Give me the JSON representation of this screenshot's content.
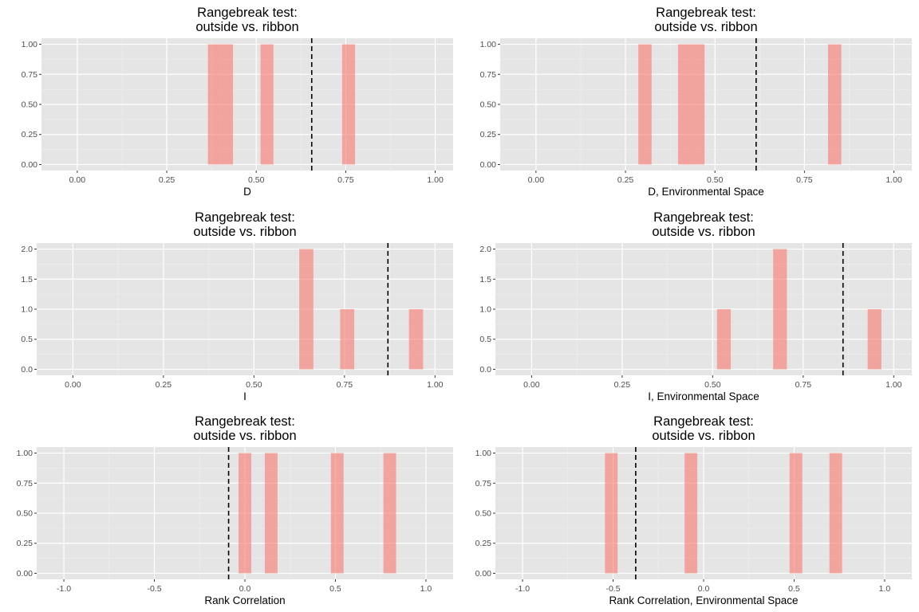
{
  "colors": {
    "panel_background": "#e5e5e5",
    "grid_major": "#ffffff",
    "grid_minor": "#f0f0f0",
    "bar_fill": "#f8766d",
    "bar_opacity": 0.6,
    "reference_line": "#000000",
    "tick_mark": "#333333"
  },
  "chart_data": [
    {
      "type": "bar",
      "title": [
        "Rangebreak test:",
        "outside vs. ribbon"
      ],
      "xlabel": "D",
      "ylabel": "",
      "xlim": [
        -0.1,
        1.05
      ],
      "ylim": [
        0,
        1
      ],
      "xticks": [
        0,
        0.25,
        0.5,
        0.75,
        1
      ],
      "xtick_labels": [
        "0.00",
        "0.25",
        "0.50",
        "0.75",
        "1.00"
      ],
      "yticks": [
        0,
        0.25,
        0.5,
        0.75,
        1
      ],
      "ytick_labels": [
        "0.00",
        "0.25",
        "0.50",
        "0.75",
        "1.00"
      ],
      "bars": [
        {
          "x0": 0.365,
          "x1": 0.4,
          "count": 1
        },
        {
          "x0": 0.4,
          "x1": 0.435,
          "count": 1
        },
        {
          "x0": 0.512,
          "x1": 0.548,
          "count": 1
        },
        {
          "x0": 0.74,
          "x1": 0.776,
          "count": 1
        }
      ],
      "reference_line_x": 0.655,
      "grid": true
    },
    {
      "type": "bar",
      "title": [
        "Rangebreak test:",
        "outside vs. ribbon"
      ],
      "xlabel": "D, Environmental Space",
      "ylabel": "",
      "xlim": [
        -0.1,
        1.05
      ],
      "ylim": [
        0,
        1
      ],
      "xticks": [
        0,
        0.25,
        0.5,
        0.75,
        1
      ],
      "xtick_labels": [
        "0.00",
        "0.25",
        "0.50",
        "0.75",
        "1.00"
      ],
      "yticks": [
        0,
        0.25,
        0.5,
        0.75,
        1
      ],
      "ytick_labels": [
        "0.00",
        "0.25",
        "0.50",
        "0.75",
        "1.00"
      ],
      "bars": [
        {
          "x0": 0.286,
          "x1": 0.323,
          "count": 1
        },
        {
          "x0": 0.397,
          "x1": 0.434,
          "count": 1
        },
        {
          "x0": 0.434,
          "x1": 0.471,
          "count": 1
        },
        {
          "x0": 0.816,
          "x1": 0.853,
          "count": 1
        }
      ],
      "reference_line_x": 0.615,
      "grid": true
    },
    {
      "type": "bar",
      "title": [
        "Rangebreak test:",
        "outside vs. ribbon"
      ],
      "xlabel": "I",
      "ylabel": "",
      "xlim": [
        -0.1,
        1.05
      ],
      "ylim": [
        0,
        2
      ],
      "xticks": [
        0,
        0.25,
        0.5,
        0.75,
        1
      ],
      "xtick_labels": [
        "0.00",
        "0.25",
        "0.50",
        "0.75",
        "1.00"
      ],
      "yticks": [
        0,
        0.5,
        1,
        1.5,
        2
      ],
      "ytick_labels": [
        "0.0",
        "0.5",
        "1.0",
        "1.5",
        "2.0"
      ],
      "bars": [
        {
          "x0": 0.625,
          "x1": 0.664,
          "count": 2
        },
        {
          "x0": 0.738,
          "x1": 0.777,
          "count": 1
        },
        {
          "x0": 0.928,
          "x1": 0.967,
          "count": 1
        }
      ],
      "reference_line_x": 0.87,
      "grid": true
    },
    {
      "type": "bar",
      "title": [
        "Rangebreak test:",
        "outside vs. ribbon"
      ],
      "xlabel": "I, Environmental Space",
      "ylabel": "",
      "xlim": [
        -0.1,
        1.05
      ],
      "ylim": [
        0,
        2
      ],
      "xticks": [
        0,
        0.25,
        0.5,
        0.75,
        1
      ],
      "xtick_labels": [
        "0.00",
        "0.25",
        "0.50",
        "0.75",
        "1.00"
      ],
      "yticks": [
        0,
        0.5,
        1,
        1.5,
        2
      ],
      "ytick_labels": [
        "0.0",
        "0.5",
        "1.0",
        "1.5",
        "2.0"
      ],
      "bars": [
        {
          "x0": 0.512,
          "x1": 0.55,
          "count": 1
        },
        {
          "x0": 0.667,
          "x1": 0.705,
          "count": 2
        },
        {
          "x0": 0.928,
          "x1": 0.966,
          "count": 1
        }
      ],
      "reference_line_x": 0.86,
      "grid": true
    },
    {
      "type": "bar",
      "title": [
        "Rangebreak test:",
        "outside vs. ribbon"
      ],
      "xlabel": "Rank Correlation",
      "ylabel": "",
      "xlim": [
        -1.15,
        1.15
      ],
      "ylim": [
        0,
        1
      ],
      "xticks": [
        -1,
        -0.5,
        0,
        0.5,
        1
      ],
      "xtick_labels": [
        "-1.0",
        "-0.5",
        "0.0",
        "0.5",
        "1.0"
      ],
      "yticks": [
        0,
        0.25,
        0.5,
        0.75,
        1
      ],
      "ytick_labels": [
        "0.00",
        "0.25",
        "0.50",
        "0.75",
        "1.00"
      ],
      "bars": [
        {
          "x0": -0.035,
          "x1": 0.035,
          "count": 1
        },
        {
          "x0": 0.11,
          "x1": 0.18,
          "count": 1
        },
        {
          "x0": 0.475,
          "x1": 0.545,
          "count": 1
        },
        {
          "x0": 0.765,
          "x1": 0.835,
          "count": 1
        }
      ],
      "reference_line_x": -0.09,
      "grid": true
    },
    {
      "type": "bar",
      "title": [
        "Rangebreak test:",
        "outside vs. ribbon"
      ],
      "xlabel": "Rank Correlation, Environmental Space",
      "ylabel": "",
      "xlim": [
        -1.15,
        1.15
      ],
      "ylim": [
        0,
        1
      ],
      "xticks": [
        -1,
        -0.5,
        0,
        0.5,
        1
      ],
      "xtick_labels": [
        "-1.0",
        "-0.5",
        "0.0",
        "0.5",
        "1.0"
      ],
      "yticks": [
        0,
        0.25,
        0.5,
        0.75,
        1
      ],
      "ytick_labels": [
        "0.00",
        "0.25",
        "0.50",
        "0.75",
        "1.00"
      ],
      "bars": [
        {
          "x0": -0.545,
          "x1": -0.475,
          "count": 1
        },
        {
          "x0": -0.105,
          "x1": -0.035,
          "count": 1
        },
        {
          "x0": 0.475,
          "x1": 0.545,
          "count": 1
        },
        {
          "x0": 0.695,
          "x1": 0.765,
          "count": 1
        }
      ],
      "reference_line_x": -0.375,
      "grid": true
    }
  ]
}
